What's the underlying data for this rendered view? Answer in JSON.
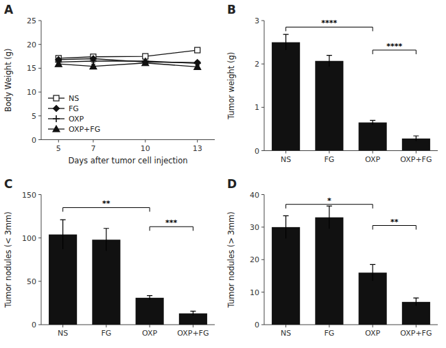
{
  "chart_data": [
    {
      "type": "line",
      "title": "A",
      "xlabel": "Days after tumor cell injection",
      "ylabel": "Body Weight (g)",
      "x": [
        5,
        7,
        10,
        13
      ],
      "xlim": [
        4,
        14
      ],
      "xticks": [
        5,
        7,
        10,
        13
      ],
      "ylim": [
        0,
        25
      ],
      "yticks": [
        0,
        5,
        10,
        15,
        20,
        25
      ],
      "legend": "lower left",
      "series": [
        {
          "name": "NS",
          "color": "#111111",
          "marker": "square-open",
          "values": [
            17.1,
            17.4,
            17.5,
            18.8
          ],
          "errors": [
            0.3,
            0.3,
            0.3,
            0.4
          ]
        },
        {
          "name": "FG",
          "color": "#111111",
          "marker": "diamond",
          "values": [
            16.8,
            17.0,
            16.3,
            16.2
          ],
          "errors": [
            0.3,
            0.3,
            0.3,
            0.3
          ]
        },
        {
          "name": "OXP",
          "color": "#111111",
          "marker": "plus",
          "values": [
            16.3,
            16.5,
            16.5,
            16.0
          ],
          "errors": [
            0.3,
            0.3,
            0.3,
            0.3
          ]
        },
        {
          "name": "OXP+FG",
          "color": "#111111",
          "marker": "triangle",
          "values": [
            15.9,
            15.4,
            16.1,
            15.3
          ],
          "errors": [
            0.3,
            0.4,
            0.3,
            0.3
          ]
        }
      ]
    },
    {
      "type": "bar",
      "title": "B",
      "ylabel": "Tumor weight (g)",
      "categories": [
        "NS",
        "FG",
        "OXP",
        "OXP+FG"
      ],
      "values": [
        2.5,
        2.07,
        0.65,
        0.28
      ],
      "errors": [
        0.18,
        0.13,
        0.05,
        0.06
      ],
      "color": "#111111",
      "ylim": [
        0,
        3.0
      ],
      "yticks": [
        0,
        1,
        2,
        3
      ],
      "annotations": [
        {
          "from": "NS",
          "to": "OXP",
          "y": 2.85,
          "text": "****"
        },
        {
          "from": "OXP",
          "to": "OXP+FG",
          "y": 2.32,
          "text": "****"
        }
      ]
    },
    {
      "type": "bar",
      "title": "C",
      "ylabel": "Tumor nodules (< 3mm)",
      "categories": [
        "NS",
        "FG",
        "OXP",
        "OXP+FG"
      ],
      "values": [
        104,
        98,
        31,
        13
      ],
      "errors": [
        17,
        13,
        2.5,
        2.5
      ],
      "color": "#111111",
      "ylim": [
        0,
        150
      ],
      "yticks": [
        0,
        50,
        100,
        150
      ],
      "annotations": [
        {
          "from": "NS",
          "to": "OXP",
          "y": 135,
          "text": "**"
        },
        {
          "from": "OXP",
          "to": "OXP+FG",
          "y": 113,
          "text": "***"
        }
      ]
    },
    {
      "type": "bar",
      "title": "D",
      "ylabel": "Tumor nodules (> 3mm)",
      "categories": [
        "NS",
        "FG",
        "OXP",
        "OXP+FG"
      ],
      "values": [
        30,
        33,
        16,
        7
      ],
      "errors": [
        3.5,
        3.5,
        2.5,
        1.2
      ],
      "color": "#111111",
      "ylim": [
        0,
        40
      ],
      "yticks": [
        0,
        10,
        20,
        30,
        40
      ],
      "annotations": [
        {
          "from": "NS",
          "to": "OXP",
          "y": 37.0,
          "text": "*"
        },
        {
          "from": "OXP",
          "to": "OXP+FG",
          "y": 30.5,
          "text": "**"
        }
      ]
    }
  ]
}
